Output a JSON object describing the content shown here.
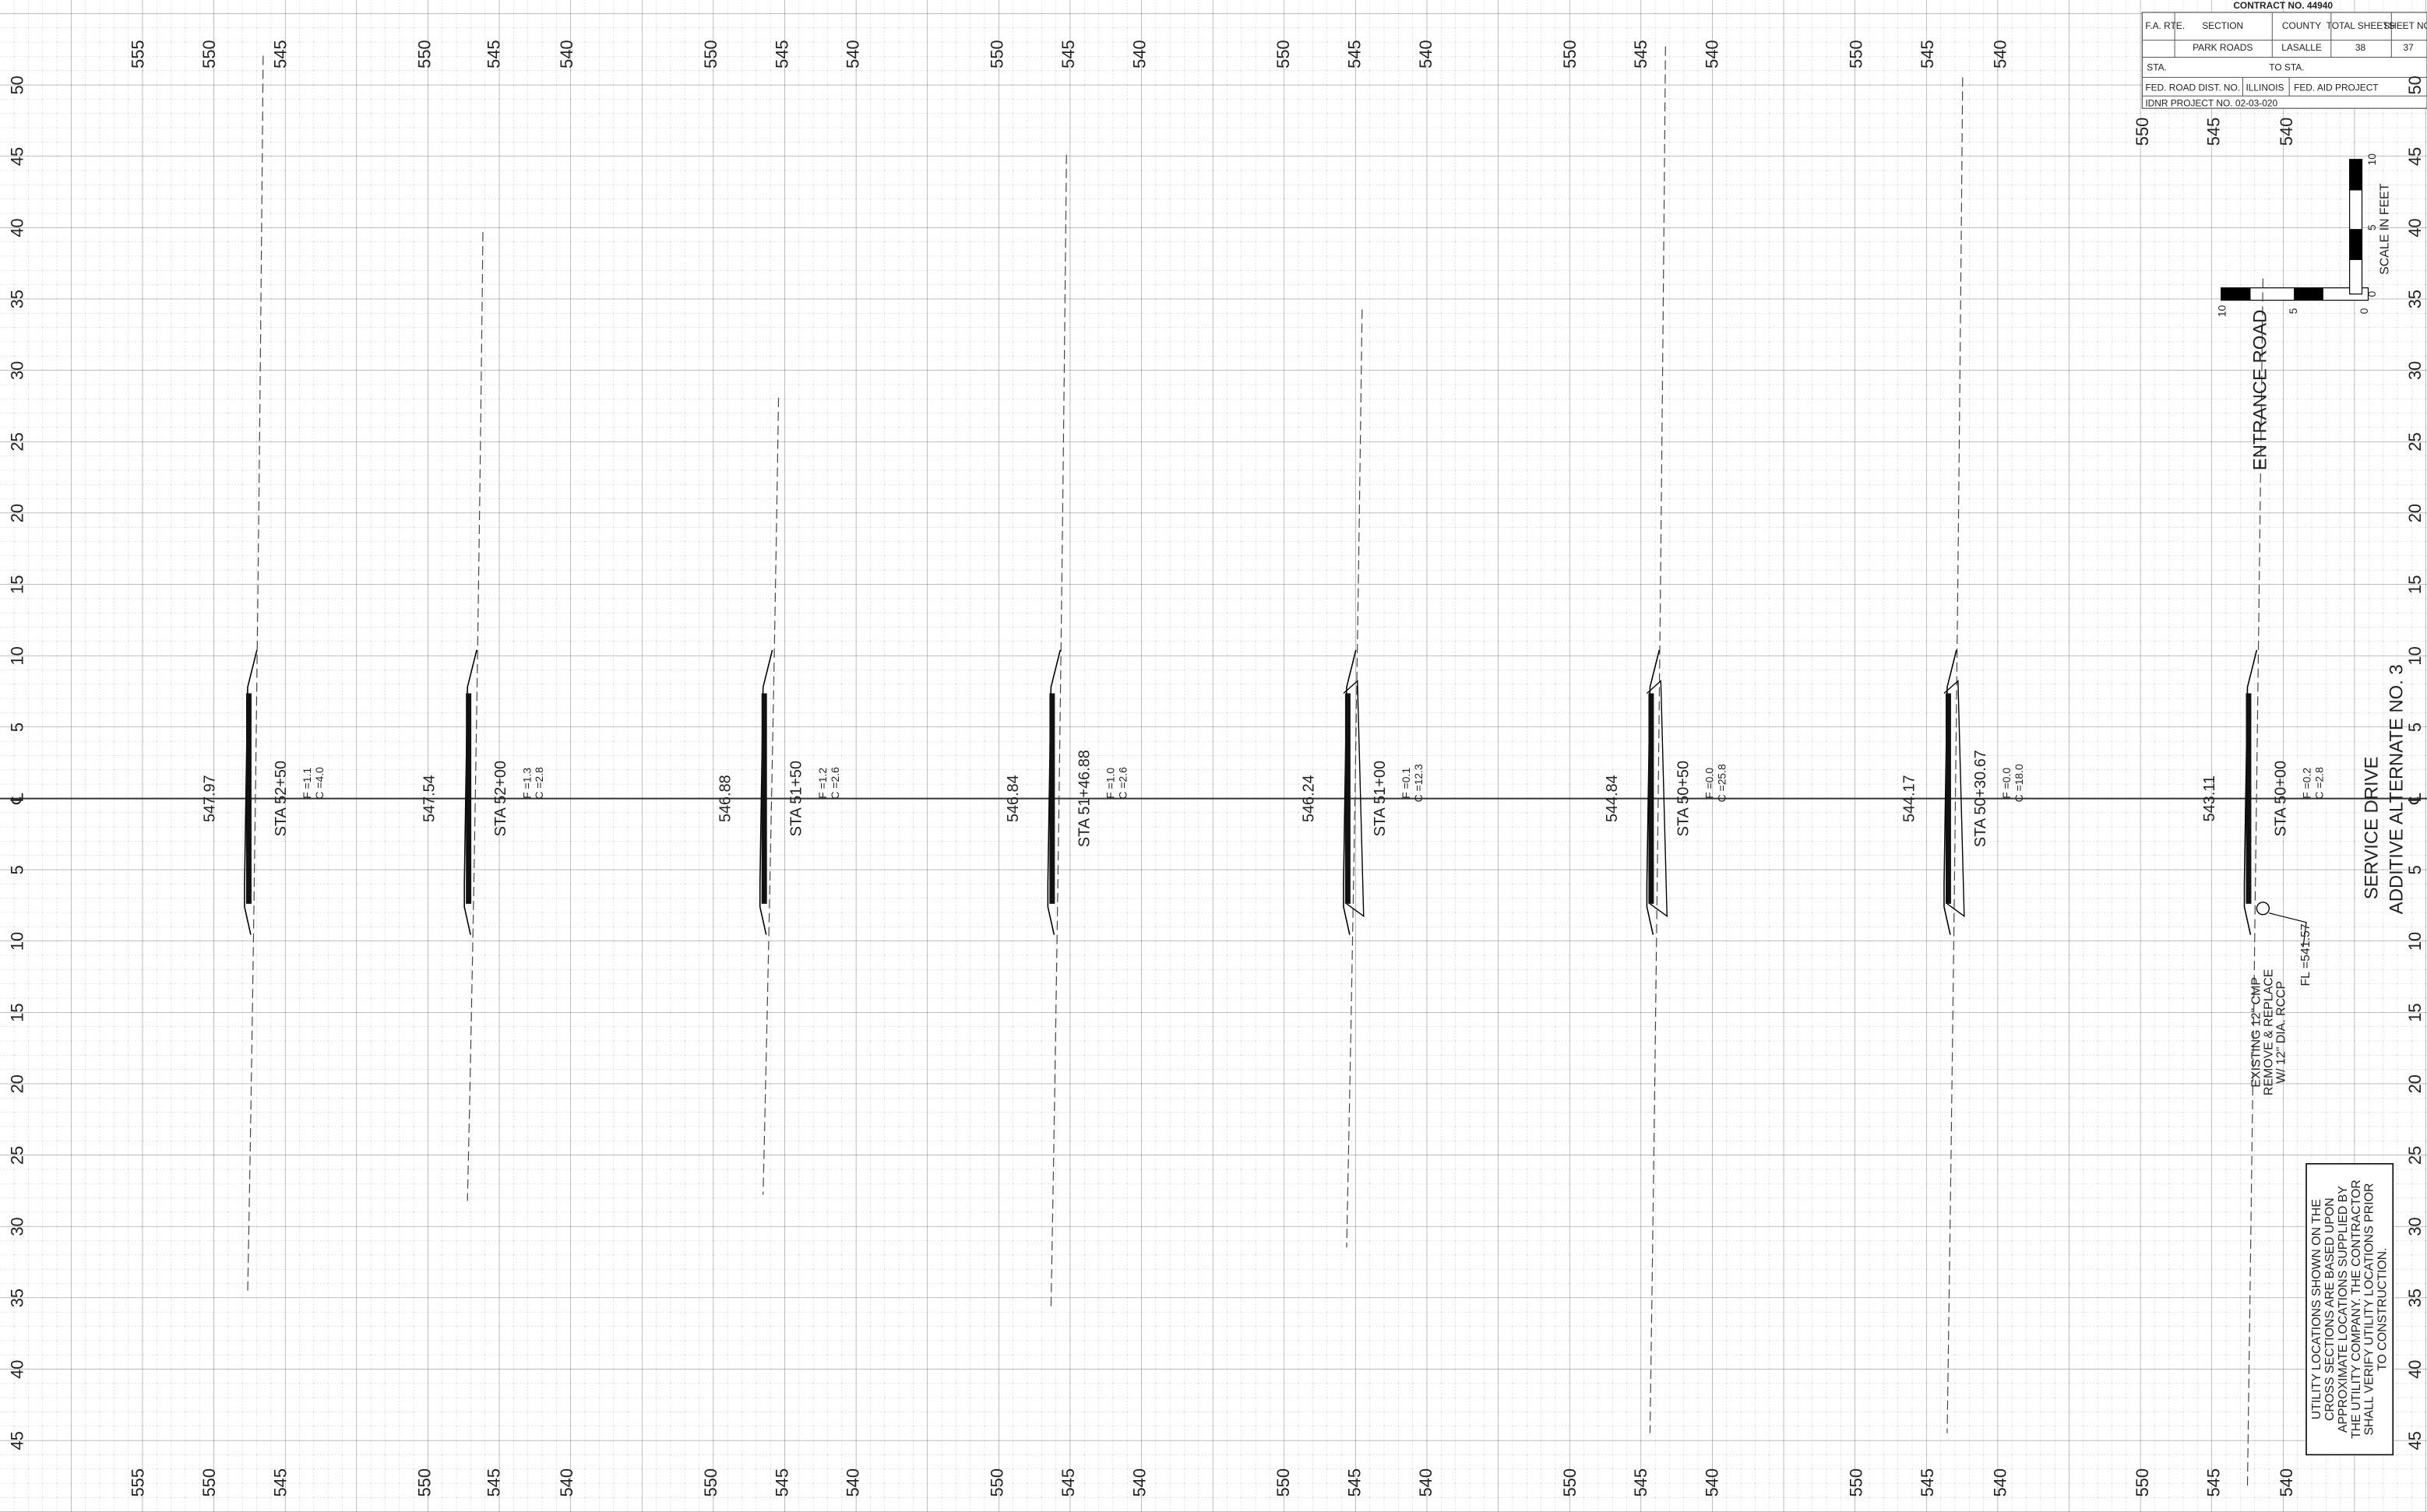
{
  "title_block": {
    "contract": "CONTRACT NO. 44940",
    "fa_rte": "F.A. RTE.",
    "section": "SECTION",
    "county": "COUNTY",
    "total_sheets": "TOTAL SHEETS",
    "sheet_no": "SHEET NO.",
    "section_value": "PARK ROADS",
    "county_value": "LASALLE",
    "total_sheets_value": "38",
    "sheet_no_value": "37",
    "sta": "STA.",
    "to_sta": "TO STA.",
    "fed_road_dist": "FED. ROAD DIST. NO.",
    "state": "ILLINOIS",
    "fed_aid_project": "FED. AID PROJECT",
    "idnr_project": "IDNR PROJECT NO. 02-03-020"
  },
  "offset_labels": [
    "50",
    "45",
    "40",
    "35",
    "30",
    "25",
    "20",
    "15",
    "10",
    "5",
    "℄",
    "5",
    "10",
    "15",
    "20",
    "25",
    "30",
    "35",
    "40",
    "45"
  ],
  "sections": [
    {
      "elevation": "547.97",
      "station": "STA 52+50",
      "fill": "F =1.1",
      "cut": "C =4.0",
      "elev_labels": [
        "555",
        "550",
        "545"
      ]
    },
    {
      "elevation": "547.54",
      "station": "STA 52+00",
      "fill": "F =1.3",
      "cut": "C =2.8",
      "elev_labels": [
        "550",
        "545",
        "540"
      ]
    },
    {
      "elevation": "546.88",
      "station": "STA 51+50",
      "fill": "F =1.2",
      "cut": "C =2.6",
      "elev_labels": [
        "550",
        "545",
        "540"
      ]
    },
    {
      "elevation": "546.84",
      "station": "STA 51+46.88",
      "fill": "F =1.0",
      "cut": "C =2.6",
      "elev_labels": [
        "550",
        "545",
        "540"
      ]
    },
    {
      "elevation": "546.24",
      "station": "STA 51+00",
      "fill": "F =0.1",
      "cut": "C =12.3",
      "elev_labels": [
        "550",
        "545",
        "540"
      ]
    },
    {
      "elevation": "544.84",
      "station": "STA 50+50",
      "fill": "F =0.0",
      "cut": "C =25.8",
      "elev_labels": [
        "550",
        "545",
        "540"
      ]
    },
    {
      "elevation": "544.17",
      "station": "STA 50+30.67",
      "fill": "F =0.0",
      "cut": "C =18.0",
      "elev_labels": [
        "550",
        "545",
        "540"
      ]
    },
    {
      "elevation": "543.11",
      "station": "STA 50+00",
      "fill": "F =0.2",
      "cut": "C =2.8",
      "elev_labels": [
        "550",
        "545",
        "540"
      ]
    }
  ],
  "annotations": {
    "entrance_road": "ENTRANCE ROAD",
    "service_drive": "SERVICE DRIVE",
    "additive_alternate": "ADDITIVE ALTERNATE NO. 3",
    "culvert_note": [
      "EXISTING 12\" CMP",
      "REMOVE & REPLACE",
      "W/ 12\" DIA. RCCP"
    ],
    "flow_line": "FL =541.57",
    "utility_note": [
      "UTILITY LOCATIONS SHOWN ON THE",
      "CROSS SECTIONS ARE BASED UPON",
      "APPROXIMATE LOCATIONS SUPPLIED BY",
      "THE UTILITY COMPANY. THE CONTRACTOR",
      "SHALL VERIFY UTILITY LOCATIONS PRIOR",
      "TO CONSTRUCTION."
    ]
  },
  "scale": {
    "label": "SCALE IN FEET",
    "ticks": [
      "10",
      "5",
      "0"
    ]
  }
}
